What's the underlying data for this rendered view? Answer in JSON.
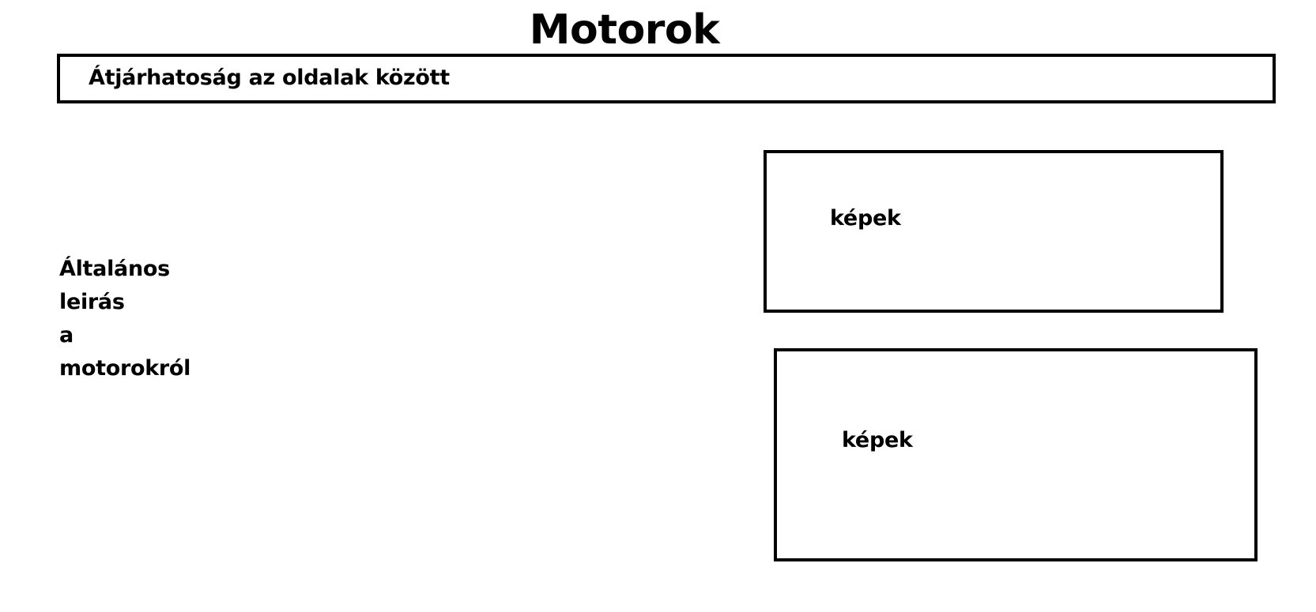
{
  "page": {
    "title": "Motorok"
  },
  "navigation": {
    "label": "Átjárhatoság az oldalak között"
  },
  "description": {
    "lines": [
      "Általános",
      "leirás",
      "a",
      "motorokról"
    ]
  },
  "images": [
    {
      "label": "képek"
    },
    {
      "label": "képek"
    }
  ]
}
